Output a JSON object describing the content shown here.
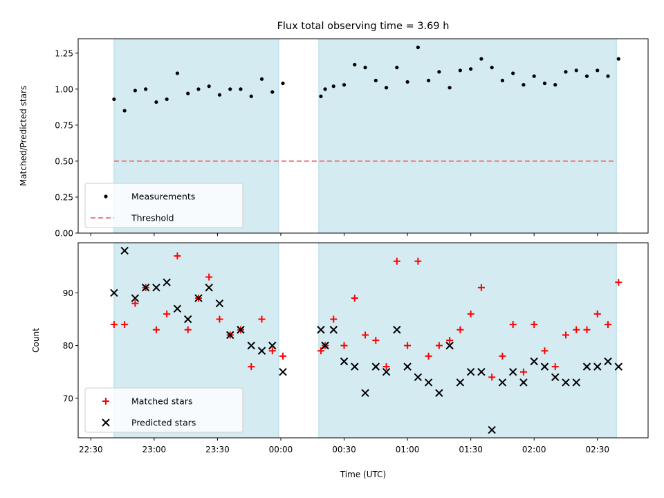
{
  "chart_data": [
    {
      "type": "scatter",
      "title": "Flux total observing time = 3.69 h",
      "xlabel": "",
      "ylabel": "Matched/Predicted stars",
      "xlim": [
        "22:24",
        "02:54"
      ],
      "ylim": [
        0,
        1.35
      ],
      "yticks": [
        "0.00",
        "0.25",
        "0.50",
        "0.75",
        "1.00",
        "1.25"
      ],
      "ytick_values": [
        0,
        0.25,
        0.5,
        0.75,
        1.0,
        1.25
      ],
      "xticks": [
        "22:30",
        "23:00",
        "23:30",
        "00:00",
        "00:30",
        "01:00",
        "01:30",
        "02:00",
        "02:30"
      ],
      "shaded_intervals": [
        [
          "22:41",
          "23:59"
        ],
        [
          "00:18",
          "02:39"
        ]
      ],
      "shade_color": "#add8e6",
      "legend": {
        "position": "lower-left",
        "entries": [
          "Measurements",
          "Threshold"
        ]
      },
      "series": [
        {
          "name": "Measurements",
          "marker": "dot",
          "color": "#000000",
          "points": [
            [
              "22:41",
              0.93
            ],
            [
              "22:46",
              0.85
            ],
            [
              "22:51",
              0.99
            ],
            [
              "22:56",
              1.0
            ],
            [
              "23:01",
              0.91
            ],
            [
              "23:06",
              0.93
            ],
            [
              "23:11",
              1.11
            ],
            [
              "23:16",
              0.97
            ],
            [
              "23:21",
              1.0
            ],
            [
              "23:26",
              1.02
            ],
            [
              "23:31",
              0.96
            ],
            [
              "23:36",
              1.0
            ],
            [
              "23:41",
              1.0
            ],
            [
              "23:46",
              0.95
            ],
            [
              "23:51",
              1.07
            ],
            [
              "23:56",
              0.98
            ],
            [
              "00:01",
              1.04
            ],
            [
              "00:19",
              0.95
            ],
            [
              "00:21",
              1.0
            ],
            [
              "00:25",
              1.02
            ],
            [
              "00:30",
              1.03
            ],
            [
              "00:35",
              1.17
            ],
            [
              "00:40",
              1.15
            ],
            [
              "00:45",
              1.06
            ],
            [
              "00:50",
              1.01
            ],
            [
              "00:55",
              1.15
            ],
            [
              "01:00",
              1.05
            ],
            [
              "01:05",
              1.29
            ],
            [
              "01:10",
              1.06
            ],
            [
              "01:15",
              1.12
            ],
            [
              "01:20",
              1.01
            ],
            [
              "01:25",
              1.13
            ],
            [
              "01:30",
              1.14
            ],
            [
              "01:35",
              1.21
            ],
            [
              "01:40",
              1.15
            ],
            [
              "01:45",
              1.06
            ],
            [
              "01:50",
              1.11
            ],
            [
              "01:55",
              1.03
            ],
            [
              "02:00",
              1.09
            ],
            [
              "02:05",
              1.04
            ],
            [
              "02:10",
              1.03
            ],
            [
              "02:15",
              1.12
            ],
            [
              "02:20",
              1.13
            ],
            [
              "02:25",
              1.09
            ],
            [
              "02:30",
              1.13
            ],
            [
              "02:35",
              1.09
            ],
            [
              "02:40",
              1.21
            ]
          ]
        },
        {
          "name": "Threshold",
          "marker": "dashed-line",
          "color": "#f08080",
          "points": [
            [
              "22:41",
              0.5
            ],
            [
              "02:39",
              0.5
            ]
          ]
        }
      ]
    },
    {
      "type": "scatter",
      "title": "",
      "xlabel": "Time (UTC)",
      "ylabel": "Count",
      "xlim": [
        "22:24",
        "02:54"
      ],
      "ylim": [
        62.5,
        99.5
      ],
      "yticks": [
        "70",
        "80",
        "90"
      ],
      "ytick_values": [
        70,
        80,
        90
      ],
      "xticks": [
        "22:30",
        "23:00",
        "23:30",
        "00:00",
        "00:30",
        "01:00",
        "01:30",
        "02:00",
        "02:30"
      ],
      "shaded_intervals": [
        [
          "22:41",
          "23:59"
        ],
        [
          "00:18",
          "02:39"
        ]
      ],
      "shade_color": "#add8e6",
      "legend": {
        "position": "lower-left",
        "entries": [
          "Matched stars",
          "Predicted stars"
        ]
      },
      "series": [
        {
          "name": "Matched stars",
          "marker": "plus",
          "color": "#ff0000",
          "points": [
            [
              "22:41",
              84
            ],
            [
              "22:46",
              84
            ],
            [
              "22:51",
              88
            ],
            [
              "22:56",
              91
            ],
            [
              "23:01",
              83
            ],
            [
              "23:06",
              86
            ],
            [
              "23:11",
              97
            ],
            [
              "23:16",
              83
            ],
            [
              "23:21",
              89
            ],
            [
              "23:26",
              93
            ],
            [
              "23:31",
              85
            ],
            [
              "23:36",
              82
            ],
            [
              "23:41",
              83
            ],
            [
              "23:46",
              76
            ],
            [
              "23:51",
              85
            ],
            [
              "23:56",
              79
            ],
            [
              "00:01",
              78
            ],
            [
              "00:19",
              79
            ],
            [
              "00:21",
              80
            ],
            [
              "00:25",
              85
            ],
            [
              "00:30",
              80
            ],
            [
              "00:35",
              89
            ],
            [
              "00:40",
              82
            ],
            [
              "00:45",
              81
            ],
            [
              "00:50",
              76
            ],
            [
              "00:55",
              96
            ],
            [
              "01:00",
              80
            ],
            [
              "01:05",
              96
            ],
            [
              "01:10",
              78
            ],
            [
              "01:15",
              80
            ],
            [
              "01:20",
              81
            ],
            [
              "01:25",
              83
            ],
            [
              "01:30",
              86
            ],
            [
              "01:35",
              91
            ],
            [
              "01:40",
              74
            ],
            [
              "01:45",
              78
            ],
            [
              "01:50",
              84
            ],
            [
              "01:55",
              75
            ],
            [
              "02:00",
              84
            ],
            [
              "02:05",
              79
            ],
            [
              "02:10",
              76
            ],
            [
              "02:15",
              82
            ],
            [
              "02:20",
              83
            ],
            [
              "02:25",
              83
            ],
            [
              "02:30",
              86
            ],
            [
              "02:35",
              84
            ],
            [
              "02:40",
              92
            ]
          ]
        },
        {
          "name": "Predicted stars",
          "marker": "x",
          "color": "#000000",
          "points": [
            [
              "22:41",
              90
            ],
            [
              "22:46",
              98
            ],
            [
              "22:51",
              89
            ],
            [
              "22:56",
              91
            ],
            [
              "23:01",
              91
            ],
            [
              "23:06",
              92
            ],
            [
              "23:11",
              87
            ],
            [
              "23:16",
              85
            ],
            [
              "23:21",
              89
            ],
            [
              "23:26",
              91
            ],
            [
              "23:31",
              88
            ],
            [
              "23:36",
              82
            ],
            [
              "23:41",
              83
            ],
            [
              "23:46",
              80
            ],
            [
              "23:51",
              79
            ],
            [
              "23:56",
              80
            ],
            [
              "00:01",
              75
            ],
            [
              "00:19",
              83
            ],
            [
              "00:21",
              80
            ],
            [
              "00:25",
              83
            ],
            [
              "00:30",
              77
            ],
            [
              "00:35",
              76
            ],
            [
              "00:40",
              71
            ],
            [
              "00:45",
              76
            ],
            [
              "00:50",
              75
            ],
            [
              "00:55",
              83
            ],
            [
              "01:00",
              76
            ],
            [
              "01:05",
              74
            ],
            [
              "01:10",
              73
            ],
            [
              "01:15",
              71
            ],
            [
              "01:20",
              80
            ],
            [
              "01:25",
              73
            ],
            [
              "01:30",
              75
            ],
            [
              "01:35",
              75
            ],
            [
              "01:40",
              64
            ],
            [
              "01:45",
              73
            ],
            [
              "01:50",
              75
            ],
            [
              "01:55",
              73
            ],
            [
              "02:00",
              77
            ],
            [
              "02:05",
              76
            ],
            [
              "02:10",
              74
            ],
            [
              "02:15",
              73
            ],
            [
              "02:20",
              73
            ],
            [
              "02:25",
              76
            ],
            [
              "02:30",
              76
            ],
            [
              "02:35",
              77
            ],
            [
              "02:40",
              76
            ]
          ]
        }
      ]
    }
  ]
}
